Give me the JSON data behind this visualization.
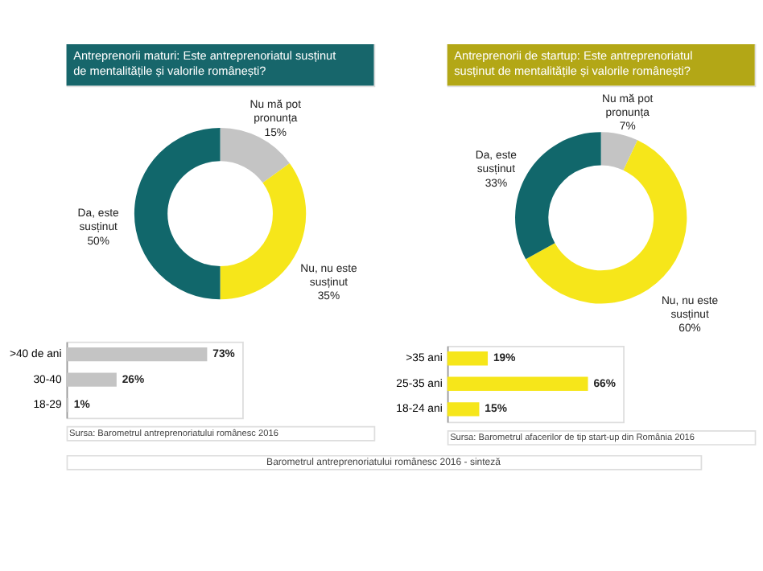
{
  "chart_data": [
    {
      "type": "donut",
      "title": "Antreprenorii maturi: Este antreprenoriatul susținut de mentalitățile și valorile românești?",
      "categories": [
        "Nu mă pot pronunța",
        "Nu, nu este susținut",
        "Da, este susținut"
      ],
      "values": [
        15,
        35,
        50
      ],
      "value_labels": [
        "15%",
        "35%",
        "50%"
      ],
      "colors": [
        "#c4c4c4",
        "#f6e61a",
        "#11676b"
      ],
      "legend": false
    },
    {
      "type": "bar",
      "orientation": "horizontal",
      "categories": [
        ">40 de ani",
        "30-40",
        "18-29"
      ],
      "values": [
        73,
        26,
        1
      ],
      "value_labels": [
        "73%",
        "26%",
        "1%"
      ],
      "color": "#c4c4c4",
      "annotations": [
        "Sursa: Barometrul antreprenoriatului românesc 2016"
      ]
    },
    {
      "type": "donut",
      "title": "Antreprenorii de startup: Este antreprenoriatul susținut de mentalitățile și valorile românești?",
      "categories": [
        "Nu mă pot pronunța",
        "Nu, nu este susținut",
        "Da, este susținut"
      ],
      "values": [
        7,
        60,
        33
      ],
      "value_labels": [
        "7%",
        "60%",
        "33%"
      ],
      "colors": [
        "#c4c4c4",
        "#f6e61a",
        "#11676b"
      ],
      "legend": false
    },
    {
      "type": "bar",
      "orientation": "horizontal",
      "categories": [
        ">35 ani",
        "25-35 ani",
        "18-24 ani"
      ],
      "values": [
        19,
        66,
        15
      ],
      "value_labels": [
        "19%",
        "66%",
        "15%"
      ],
      "color": "#f6e61a",
      "annotations": [
        "Sursa: Barometrul afacerilor de tip start-up din România 2016",
        "Barometrul antreprenoriatului românesc 2016 - sinteză"
      ]
    }
  ]
}
